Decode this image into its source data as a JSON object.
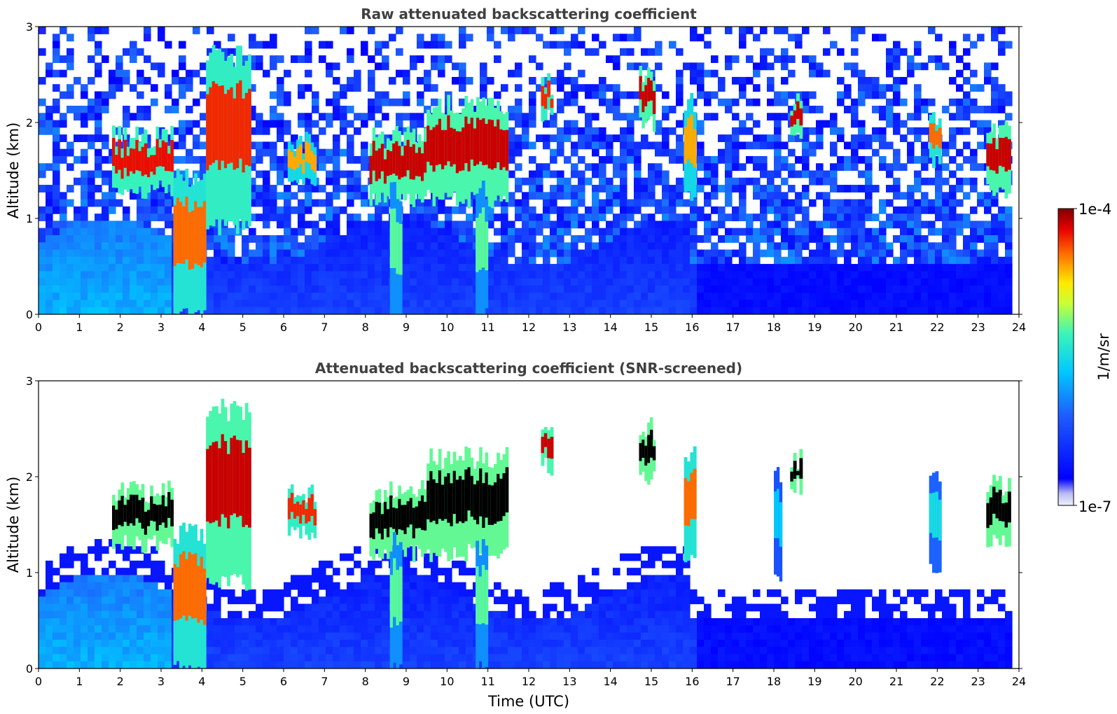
{
  "chart_data": {
    "type": "heatmap",
    "panels": [
      {
        "title": "Raw attenuated backscattering coefficient",
        "xlabel": "",
        "ylabel": "Altitude (km)",
        "xlim": [
          0,
          24
        ],
        "ylim": [
          0,
          3
        ],
        "xticks": [
          "0",
          "1",
          "2",
          "3",
          "4",
          "5",
          "6",
          "7",
          "8",
          "9",
          "10",
          "11",
          "12",
          "13",
          "14",
          "15",
          "16",
          "17",
          "18",
          "19",
          "20",
          "21",
          "22",
          "23",
          "24"
        ],
        "yticks": [
          "0",
          "1",
          "2",
          "3"
        ],
        "background_noise": true,
        "features": [
          {
            "t0": 1.8,
            "t1": 3.3,
            "z0": 1.3,
            "z1": 1.85,
            "level": 0.92
          },
          {
            "t0": 3.3,
            "t1": 4.1,
            "z0": 0.0,
            "z1": 1.4,
            "level": 0.85
          },
          {
            "t0": 4.1,
            "t1": 5.2,
            "z0": 0.9,
            "z1": 2.7,
            "level": 0.9
          },
          {
            "t0": 6.1,
            "t1": 6.8,
            "z0": 1.4,
            "z1": 1.8,
            "level": 0.8
          },
          {
            "t0": 8.1,
            "t1": 9.5,
            "z0": 1.2,
            "z1": 1.85,
            "level": 0.95
          },
          {
            "t0": 8.6,
            "t1": 8.9,
            "z0": 0.0,
            "z1": 1.3,
            "level": 0.6
          },
          {
            "t0": 9.5,
            "t1": 11.5,
            "z0": 1.2,
            "z1": 2.2,
            "level": 0.95
          },
          {
            "t0": 10.7,
            "t1": 11.0,
            "z0": 0.0,
            "z1": 1.3,
            "level": 0.6
          },
          {
            "t0": 12.3,
            "t1": 12.6,
            "z0": 2.1,
            "z1": 2.4,
            "level": 0.9
          },
          {
            "t0": 14.7,
            "t1": 15.1,
            "z0": 2.0,
            "z1": 2.5,
            "level": 0.95
          },
          {
            "t0": 15.8,
            "t1": 16.1,
            "z0": 1.2,
            "z1": 2.2,
            "level": 0.8
          },
          {
            "t0": 18.4,
            "t1": 18.7,
            "z0": 1.9,
            "z1": 2.2,
            "level": 0.95
          },
          {
            "t0": 21.8,
            "t1": 22.1,
            "z0": 1.6,
            "z1": 2.0,
            "level": 0.85
          },
          {
            "t0": 23.2,
            "t1": 23.8,
            "z0": 1.3,
            "z1": 1.9,
            "level": 0.95
          }
        ]
      },
      {
        "title": "Attenuated backscattering coefficient (SNR-screened)",
        "xlabel": "Time (UTC)",
        "ylabel": "Altitude (km)",
        "xlim": [
          0,
          24
        ],
        "ylim": [
          0,
          3
        ],
        "xticks": [
          "0",
          "1",
          "2",
          "3",
          "4",
          "5",
          "6",
          "7",
          "8",
          "9",
          "10",
          "11",
          "12",
          "13",
          "14",
          "15",
          "16",
          "17",
          "18",
          "19",
          "20",
          "21",
          "22",
          "23",
          "24"
        ],
        "yticks": [
          "0",
          "1",
          "2",
          "3"
        ],
        "background_noise": false,
        "features": [
          {
            "t0": 1.8,
            "t1": 3.3,
            "z0": 1.3,
            "z1": 1.85,
            "level": 0.98
          },
          {
            "t0": 3.3,
            "t1": 4.1,
            "z0": 0.0,
            "z1": 1.4,
            "level": 0.85
          },
          {
            "t0": 4.1,
            "t1": 5.2,
            "z0": 0.9,
            "z1": 2.7,
            "level": 0.95
          },
          {
            "t0": 6.1,
            "t1": 6.8,
            "z0": 1.4,
            "z1": 1.8,
            "level": 0.9
          },
          {
            "t0": 8.1,
            "t1": 9.5,
            "z0": 1.2,
            "z1": 1.85,
            "level": 0.98
          },
          {
            "t0": 8.6,
            "t1": 8.9,
            "z0": 0.0,
            "z1": 1.3,
            "level": 0.6
          },
          {
            "t0": 9.5,
            "t1": 11.5,
            "z0": 1.2,
            "z1": 2.2,
            "level": 0.98
          },
          {
            "t0": 10.7,
            "t1": 11.0,
            "z0": 0.0,
            "z1": 1.3,
            "level": 0.6
          },
          {
            "t0": 12.3,
            "t1": 12.6,
            "z0": 2.1,
            "z1": 2.4,
            "level": 0.95
          },
          {
            "t0": 14.7,
            "t1": 15.1,
            "z0": 2.0,
            "z1": 2.5,
            "level": 0.98
          },
          {
            "t0": 15.8,
            "t1": 16.1,
            "z0": 1.2,
            "z1": 2.2,
            "level": 0.85
          },
          {
            "t0": 18.0,
            "t1": 18.2,
            "z0": 1.0,
            "z1": 2.0,
            "level": 0.45
          },
          {
            "t0": 18.4,
            "t1": 18.7,
            "z0": 1.9,
            "z1": 2.2,
            "level": 0.98
          },
          {
            "t0": 21.8,
            "t1": 22.1,
            "z0": 1.0,
            "z1": 2.0,
            "level": 0.5
          },
          {
            "t0": 23.2,
            "t1": 23.8,
            "z0": 1.3,
            "z1": 1.9,
            "level": 0.98
          }
        ]
      }
    ],
    "colorbar": {
      "label": "1/m/sr",
      "max_label": "1e-4",
      "min_label": "1e-7",
      "colormap": "jet",
      "scale": "log"
    }
  }
}
